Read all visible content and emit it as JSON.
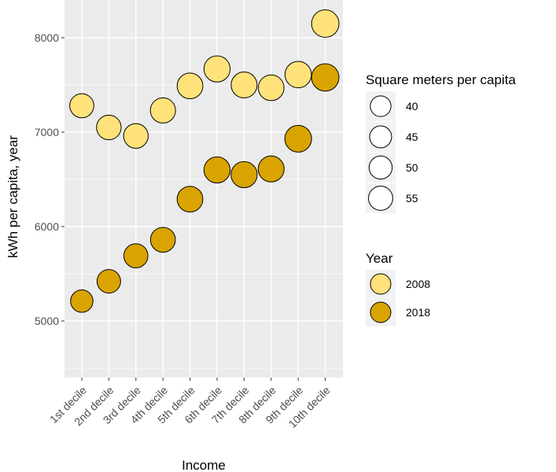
{
  "chart_data": {
    "type": "scatter",
    "title": "",
    "xlabel": "Income",
    "ylabel": "kWh per capita, year",
    "categories": [
      "1st decile",
      "2nd decile",
      "3rd decile",
      "4th decile",
      "5th decile",
      "6th decile",
      "7th decile",
      "8th decile",
      "9th decile",
      "10th decile"
    ],
    "ylim": [
      4400,
      8400
    ],
    "yticks": [
      5000,
      6000,
      7000,
      8000
    ],
    "grid": true,
    "series": [
      {
        "name": "2008",
        "color": "#ffe27a",
        "values": [
          7280,
          7050,
          6960,
          7230,
          7490,
          7670,
          7500,
          7470,
          7610,
          8150
        ],
        "size": [
          44,
          46,
          46,
          48,
          50,
          52,
          51,
          50,
          53,
          57
        ]
      },
      {
        "name": "2018",
        "color": "#d9a400",
        "values": [
          5210,
          5420,
          5690,
          5860,
          6290,
          6600,
          6550,
          6610,
          6930,
          7580
        ],
        "size": [
          38,
          42,
          44,
          47,
          50,
          52,
          52,
          51,
          54,
          57
        ]
      }
    ],
    "legend": {
      "placement": "right",
      "size_title": "Square meters per capita",
      "size_entries": [
        {
          "label": "40",
          "value": 40
        },
        {
          "label": "45",
          "value": 45
        },
        {
          "label": "50",
          "value": 50
        },
        {
          "label": "55",
          "value": 55
        }
      ],
      "color_title": "Year",
      "color_entries": [
        {
          "label": "2008",
          "color": "#ffe27a"
        },
        {
          "label": "2018",
          "color": "#d9a400"
        }
      ]
    },
    "panel_background": "#ebebeb",
    "gridline_color": "#ffffff"
  }
}
